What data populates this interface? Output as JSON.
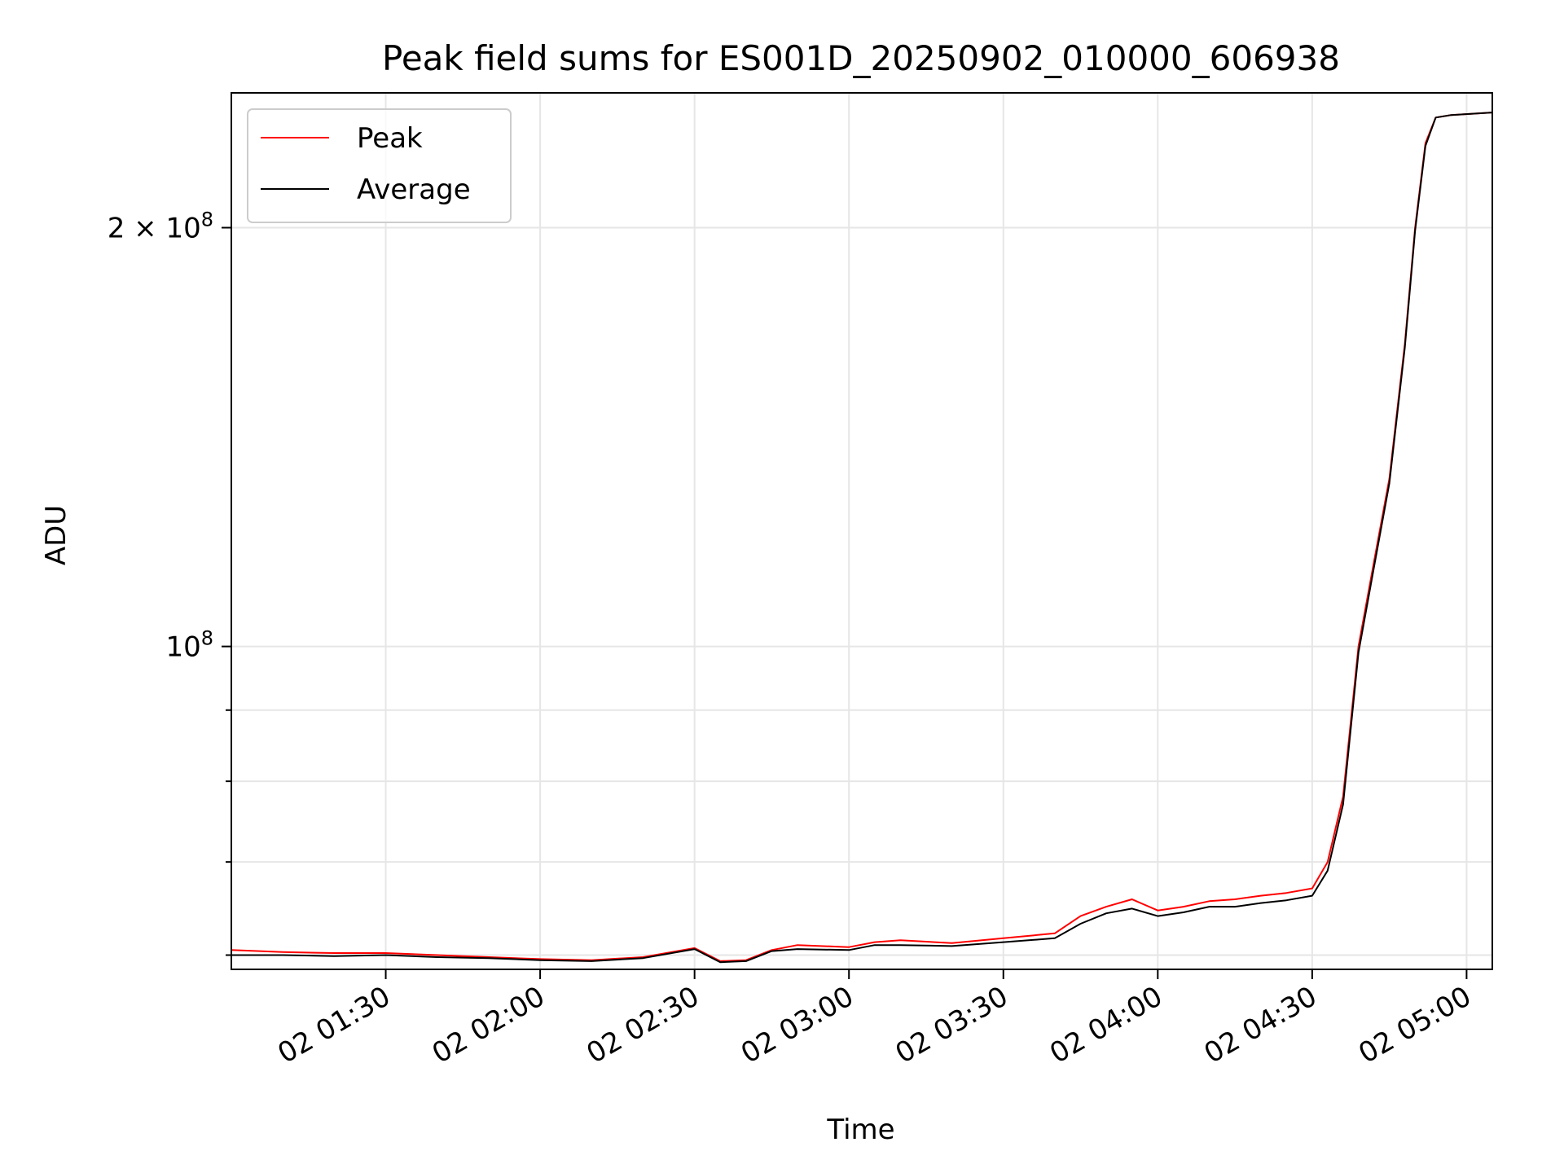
{
  "chart_data": {
    "type": "line",
    "title": "Peak field sums for ES001D_20250902_010000_606938",
    "xlabel": "Time",
    "ylabel": "ADU",
    "x_axis": {
      "kind": "time",
      "range": [
        "2025-09-02T01:00:00",
        "2025-09-02T05:05:00"
      ],
      "ticks": [
        {
          "t": "2025-09-02T01:30:00",
          "label": "02 01:30"
        },
        {
          "t": "2025-09-02T02:00:00",
          "label": "02 02:00"
        },
        {
          "t": "2025-09-02T02:30:00",
          "label": "02 02:30"
        },
        {
          "t": "2025-09-02T03:00:00",
          "label": "02 03:00"
        },
        {
          "t": "2025-09-02T03:30:00",
          "label": "02 03:30"
        },
        {
          "t": "2025-09-02T04:00:00",
          "label": "02 04:00"
        },
        {
          "t": "2025-09-02T04:30:00",
          "label": "02 04:30"
        },
        {
          "t": "2025-09-02T05:00:00",
          "label": "02 05:00"
        }
      ]
    },
    "y_axis": {
      "scale": "log",
      "range": [
        58600000,
        250000000
      ],
      "major_ticks": [
        {
          "value": 100000000,
          "label_base": "10",
          "label_exp": "8",
          "label_coef": ""
        },
        {
          "value": 200000000,
          "label_base": "10",
          "label_exp": "8",
          "label_coef": "2 × "
        }
      ],
      "minor_ticks": [
        60000000,
        70000000,
        80000000,
        90000000
      ]
    },
    "grid": true,
    "legend": {
      "position": "top-left"
    },
    "series": [
      {
        "name": "Peak",
        "color": "#ff0000",
        "points": [
          [
            "2025-09-02T01:00:00",
            60500000
          ],
          [
            "2025-09-02T01:10:00",
            60300000
          ],
          [
            "2025-09-02T01:20:00",
            60200000
          ],
          [
            "2025-09-02T01:30:00",
            60200000
          ],
          [
            "2025-09-02T01:40:00",
            60000000
          ],
          [
            "2025-09-02T01:50:00",
            59800000
          ],
          [
            "2025-09-02T02:00:00",
            59600000
          ],
          [
            "2025-09-02T02:10:00",
            59500000
          ],
          [
            "2025-09-02T02:20:00",
            59800000
          ],
          [
            "2025-09-02T02:30:00",
            60700000
          ],
          [
            "2025-09-02T02:35:00",
            59400000
          ],
          [
            "2025-09-02T02:40:00",
            59500000
          ],
          [
            "2025-09-02T02:45:00",
            60500000
          ],
          [
            "2025-09-02T02:50:00",
            61000000
          ],
          [
            "2025-09-02T03:00:00",
            60800000
          ],
          [
            "2025-09-02T03:05:00",
            61300000
          ],
          [
            "2025-09-02T03:10:00",
            61500000
          ],
          [
            "2025-09-02T03:20:00",
            61200000
          ],
          [
            "2025-09-02T03:30:00",
            61700000
          ],
          [
            "2025-09-02T03:40:00",
            62200000
          ],
          [
            "2025-09-02T03:45:00",
            64000000
          ],
          [
            "2025-09-02T03:50:00",
            65000000
          ],
          [
            "2025-09-02T03:55:00",
            65800000
          ],
          [
            "2025-09-02T04:00:00",
            64600000
          ],
          [
            "2025-09-02T04:05:00",
            65000000
          ],
          [
            "2025-09-02T04:10:00",
            65600000
          ],
          [
            "2025-09-02T04:15:00",
            65800000
          ],
          [
            "2025-09-02T04:20:00",
            66200000
          ],
          [
            "2025-09-02T04:25:00",
            66500000
          ],
          [
            "2025-09-02T04:30:00",
            67000000
          ],
          [
            "2025-09-02T04:33:00",
            70000000
          ],
          [
            "2025-09-02T04:36:00",
            78000000
          ],
          [
            "2025-09-02T04:39:00",
            100000000
          ],
          [
            "2025-09-02T04:42:00",
            115000000
          ],
          [
            "2025-09-02T04:45:00",
            132000000
          ],
          [
            "2025-09-02T04:48:00",
            165000000
          ],
          [
            "2025-09-02T04:50:00",
            200000000
          ],
          [
            "2025-09-02T04:52:00",
            230000000
          ],
          [
            "2025-09-02T04:54:00",
            240000000
          ],
          [
            "2025-09-02T04:57:00",
            241000000
          ],
          [
            "2025-09-02T05:05:00",
            242000000
          ]
        ]
      },
      {
        "name": "Average",
        "color": "#000000",
        "points": [
          [
            "2025-09-02T01:00:00",
            60000000
          ],
          [
            "2025-09-02T01:10:00",
            60000000
          ],
          [
            "2025-09-02T01:20:00",
            59900000
          ],
          [
            "2025-09-02T01:30:00",
            60000000
          ],
          [
            "2025-09-02T01:40:00",
            59800000
          ],
          [
            "2025-09-02T01:50:00",
            59700000
          ],
          [
            "2025-09-02T02:00:00",
            59500000
          ],
          [
            "2025-09-02T02:10:00",
            59400000
          ],
          [
            "2025-09-02T02:20:00",
            59700000
          ],
          [
            "2025-09-02T02:30:00",
            60600000
          ],
          [
            "2025-09-02T02:35:00",
            59300000
          ],
          [
            "2025-09-02T02:40:00",
            59400000
          ],
          [
            "2025-09-02T02:45:00",
            60400000
          ],
          [
            "2025-09-02T02:50:00",
            60600000
          ],
          [
            "2025-09-02T03:00:00",
            60500000
          ],
          [
            "2025-09-02T03:05:00",
            61000000
          ],
          [
            "2025-09-02T03:10:00",
            61000000
          ],
          [
            "2025-09-02T03:20:00",
            60900000
          ],
          [
            "2025-09-02T03:30:00",
            61300000
          ],
          [
            "2025-09-02T03:40:00",
            61700000
          ],
          [
            "2025-09-02T03:45:00",
            63200000
          ],
          [
            "2025-09-02T03:50:00",
            64300000
          ],
          [
            "2025-09-02T03:55:00",
            64800000
          ],
          [
            "2025-09-02T04:00:00",
            64000000
          ],
          [
            "2025-09-02T04:05:00",
            64400000
          ],
          [
            "2025-09-02T04:10:00",
            65000000
          ],
          [
            "2025-09-02T04:15:00",
            65000000
          ],
          [
            "2025-09-02T04:20:00",
            65400000
          ],
          [
            "2025-09-02T04:25:00",
            65700000
          ],
          [
            "2025-09-02T04:30:00",
            66200000
          ],
          [
            "2025-09-02T04:33:00",
            69000000
          ],
          [
            "2025-09-02T04:36:00",
            77000000
          ],
          [
            "2025-09-02T04:39:00",
            99000000
          ],
          [
            "2025-09-02T04:42:00",
            114000000
          ],
          [
            "2025-09-02T04:45:00",
            131000000
          ],
          [
            "2025-09-02T04:48:00",
            164000000
          ],
          [
            "2025-09-02T04:50:00",
            199000000
          ],
          [
            "2025-09-02T04:52:00",
            229000000
          ],
          [
            "2025-09-02T04:54:00",
            240000000
          ],
          [
            "2025-09-02T04:57:00",
            241000000
          ],
          [
            "2025-09-02T05:05:00",
            242000000
          ]
        ]
      }
    ]
  }
}
